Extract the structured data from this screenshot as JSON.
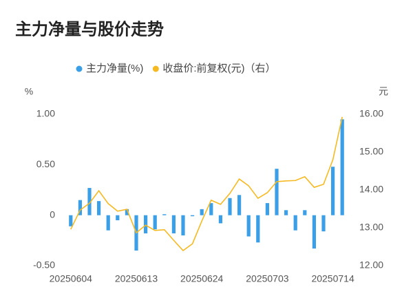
{
  "chart_data": {
    "type": "bar_line",
    "title": "主力净量与股价走势",
    "y_unit": "%",
    "y2_unit": "元",
    "categories": [
      "20250604",
      null,
      null,
      null,
      null,
      null,
      null,
      "20250613",
      null,
      null,
      null,
      null,
      null,
      null,
      "20250624",
      null,
      null,
      null,
      null,
      null,
      null,
      "20250703",
      null,
      null,
      null,
      null,
      null,
      null,
      "20250714",
      null
    ],
    "series": [
      {
        "name": "主力净量(%)",
        "color": "#3a9fe6",
        "kind": "bar",
        "values": [
          -0.11,
          0.15,
          0.27,
          0.14,
          -0.15,
          -0.05,
          0.06,
          -0.35,
          -0.18,
          -0.14,
          0.01,
          -0.18,
          -0.2,
          -0.01,
          0.06,
          0.12,
          -0.08,
          0.17,
          0.2,
          -0.21,
          -0.27,
          0.12,
          0.46,
          0.05,
          -0.15,
          0.05,
          -0.33,
          -0.16,
          0.48,
          0.95
        ]
      },
      {
        "name": "收盘价:前复权(元)（右）",
        "color": "#f5b922",
        "kind": "line",
        "axis": "y2",
        "values": [
          12.96,
          13.47,
          13.65,
          13.98,
          13.64,
          13.44,
          13.49,
          12.87,
          13.07,
          12.93,
          12.95,
          12.67,
          12.4,
          12.58,
          13.18,
          13.73,
          13.62,
          13.91,
          14.29,
          14.11,
          13.78,
          13.93,
          14.22,
          14.24,
          14.25,
          14.35,
          14.07,
          14.15,
          14.8,
          15.93
        ]
      }
    ],
    "ylim": [
      -0.5,
      1
    ],
    "yticks": [
      {
        "value": 1,
        "label": "1.00"
      },
      {
        "value": 0.5,
        "label": "0.50"
      },
      0,
      {
        "value": -0.5,
        "label": "-0.50"
      }
    ],
    "y2lim": [
      12,
      16
    ],
    "y2ticks": [
      {
        "value": 16,
        "label": "16.00"
      },
      {
        "value": 15,
        "label": "15.00"
      },
      {
        "value": 14,
        "label": "14.00"
      },
      {
        "value": 13,
        "label": "13.00"
      },
      {
        "value": 12,
        "label": "12.00"
      }
    ]
  }
}
